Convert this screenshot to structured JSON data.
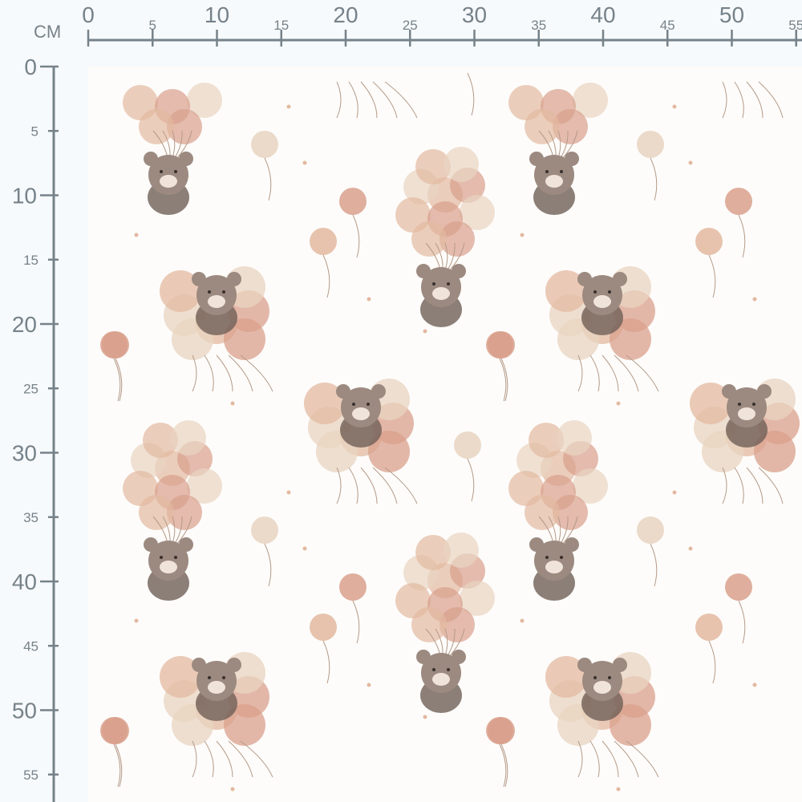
{
  "ruler": {
    "unit_label": "CM",
    "top_labels": [
      "0",
      "5",
      "10",
      "15",
      "20",
      "25",
      "30",
      "35",
      "40",
      "45",
      "50",
      "55"
    ],
    "left_labels": [
      "0",
      "5",
      "10",
      "15",
      "20",
      "25",
      "30",
      "35",
      "40",
      "45",
      "50",
      "55"
    ],
    "color": "#76828a"
  },
  "fabric": {
    "pattern": "watercolor teddy bears with balloons",
    "background": "#fdfcfa",
    "colors": {
      "balloon_peach": "#e3b9a0",
      "balloon_beige": "#e8d4c0",
      "balloon_rose": "#d9a08c",
      "bear": "#9c8a80",
      "bear_dark": "#6f5f57",
      "muzzle": "#f0e4da"
    }
  }
}
